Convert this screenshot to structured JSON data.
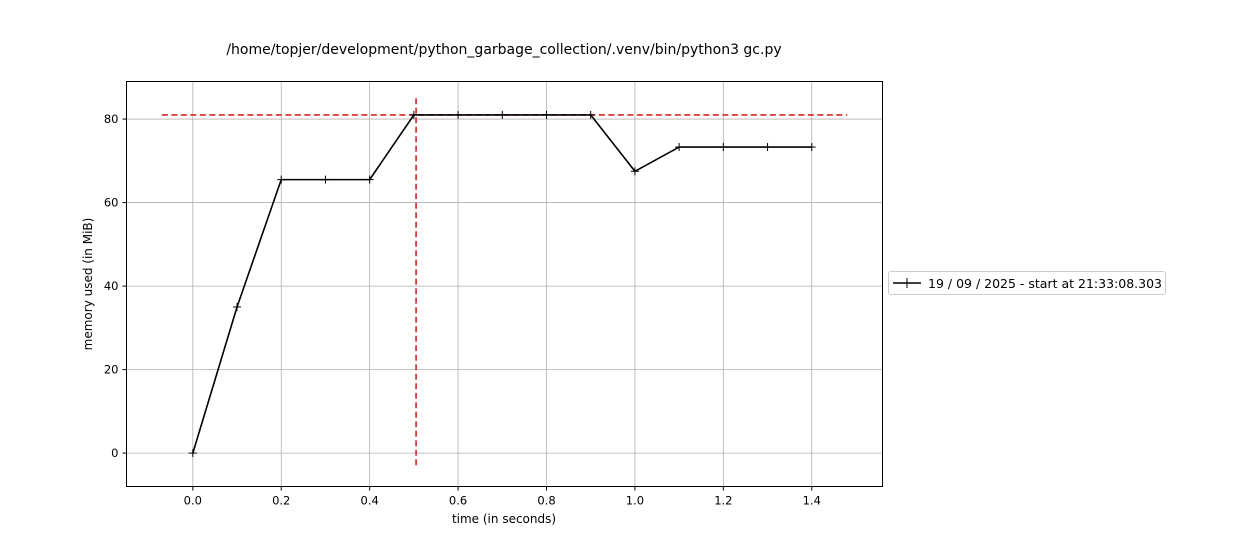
{
  "chart_data": {
    "type": "line",
    "title": "/home/topjer/development/python_garbage_collection/.venv/bin/python3 gc.py",
    "xlabel": "time (in seconds)",
    "ylabel": "memory used (in MiB)",
    "xlim": [
      -0.15,
      1.56
    ],
    "ylim": [
      -8,
      89
    ],
    "xticks": [
      0.0,
      0.2,
      0.4,
      0.6,
      0.8,
      1.0,
      1.2,
      1.4
    ],
    "xtick_labels": [
      "0.0",
      "0.2",
      "0.4",
      "0.6",
      "0.8",
      "1.0",
      "1.2",
      "1.4"
    ],
    "yticks": [
      0,
      20,
      40,
      60,
      80
    ],
    "ytick_labels": [
      "0",
      "20",
      "40",
      "60",
      "80"
    ],
    "grid": true,
    "legend_placement": "right, outside plot",
    "series": [
      {
        "name": "19 / 09 / 2025 - start at 21:33:08.303",
        "color": "#000000",
        "marker": "+",
        "x": [
          0.0,
          0.1,
          0.2,
          0.3,
          0.4,
          0.5,
          0.6,
          0.7,
          0.8,
          0.9,
          1.0,
          1.1,
          1.2,
          1.3,
          1.4
        ],
        "y": [
          0.0,
          35.0,
          65.5,
          65.5,
          65.5,
          81.0,
          81.0,
          81.0,
          81.0,
          81.0,
          67.5,
          73.3,
          73.3,
          73.3,
          73.3
        ]
      }
    ],
    "annotations": {
      "max_memory_hline": {
        "y": 81.0,
        "x_range": [
          -0.07,
          1.48
        ],
        "color": "#d62728",
        "style": "dashed"
      },
      "max_time_vline": {
        "x": 0.505,
        "y_range": [
          -3.5,
          85.0
        ],
        "color": "#d62728",
        "style": "dashed"
      }
    }
  }
}
